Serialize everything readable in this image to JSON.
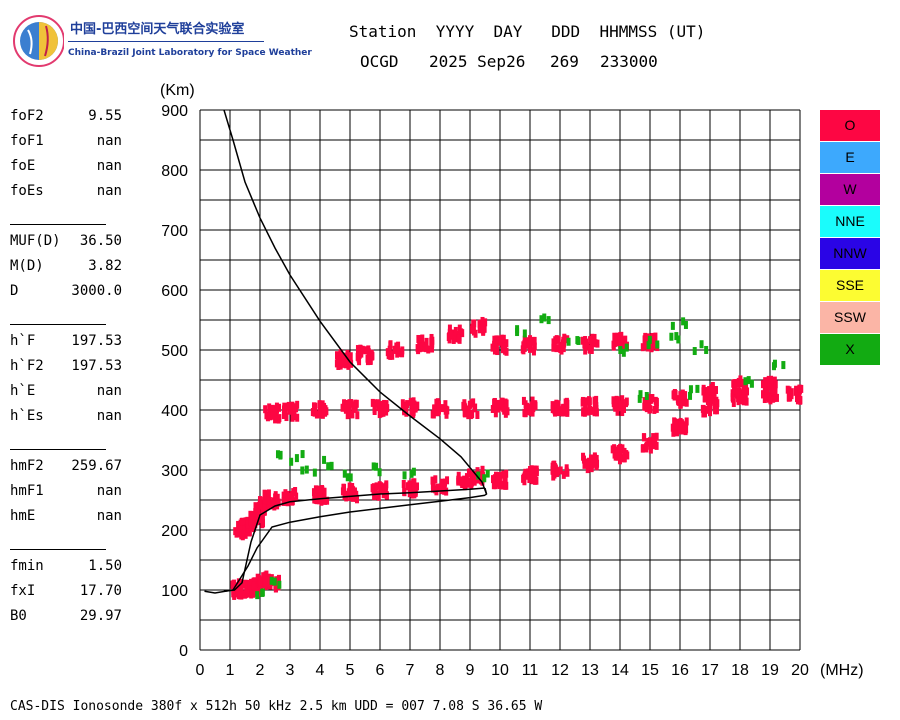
{
  "logo": {
    "cn": "中国-巴西空间天气联合实验室",
    "en": "China-Brazil Joint Laboratory for Space Weather"
  },
  "header": {
    "line1": "Station  YYYY  DAY   DDD  HHMMSS (UT)",
    "station": "OCGD",
    "date": "2025 Sep26",
    "day": "269",
    "time": "233000"
  },
  "params": [
    {
      "name": "foF2",
      "value": "9.55"
    },
    {
      "name": "foF1",
      "value": "nan"
    },
    {
      "name": "foE",
      "value": "nan"
    },
    {
      "name": "foEs",
      "value": "nan"
    },
    {
      "name": "MUF(D)",
      "value": "36.50"
    },
    {
      "name": "M(D)",
      "value": "3.82"
    },
    {
      "name": "D",
      "value": "3000.0"
    },
    {
      "name": "h`F",
      "value": "197.53"
    },
    {
      "name": "h`F2",
      "value": "197.53"
    },
    {
      "name": "h`E",
      "value": "nan"
    },
    {
      "name": "h`Es",
      "value": "nan"
    },
    {
      "name": "hmF2",
      "value": "259.67"
    },
    {
      "name": "hmF1",
      "value": "nan"
    },
    {
      "name": "hmE",
      "value": "nan"
    },
    {
      "name": "fmin",
      "value": "1.50"
    },
    {
      "name": "fxI",
      "value": "17.70"
    },
    {
      "name": "B0",
      "value": "29.97"
    }
  ],
  "legend": [
    {
      "label": "O",
      "color": "#fd0643"
    },
    {
      "label": "E",
      "color": "#3da9fd"
    },
    {
      "label": "W",
      "color": "#b3009e"
    },
    {
      "label": "NNE",
      "color": "#1afcfc"
    },
    {
      "label": "NNW",
      "color": "#2a04e6"
    },
    {
      "label": "SSE",
      "color": "#fcfc32"
    },
    {
      "label": "SSW",
      "color": "#fbb5a6"
    },
    {
      "label": "X",
      "color": "#12ab12"
    }
  ],
  "footer": "CAS-DIS Ionosonde 380f x 512h 50 kHz 2.5 km UDD = 007 7.08 S 36.65 W",
  "chart_data": {
    "type": "scatter",
    "title": "",
    "xlabel": "(MHz)",
    "ylabel": "(Km)",
    "xlim": [
      0,
      20
    ],
    "ylim": [
      0,
      900
    ],
    "xticks": [
      0,
      1,
      2,
      3,
      4,
      5,
      6,
      7,
      8,
      9,
      10,
      11,
      12,
      13,
      14,
      15,
      16,
      17,
      18,
      19,
      20
    ],
    "yticks": [
      0,
      100,
      200,
      300,
      400,
      500,
      600,
      700,
      800,
      900
    ],
    "grid": true,
    "legend_position": "right",
    "traces": [
      {
        "label": "O",
        "color": "#fd0643",
        "points": [
          [
            1.3,
            100
          ],
          [
            1.5,
            102
          ],
          [
            1.8,
            103
          ],
          [
            2.0,
            110
          ],
          [
            2.2,
            116
          ],
          [
            2.4,
            112
          ],
          [
            1.4,
            200
          ],
          [
            1.6,
            205
          ],
          [
            1.9,
            220
          ],
          [
            2.1,
            240
          ],
          [
            2.4,
            250
          ],
          [
            3.0,
            255
          ],
          [
            4.0,
            258
          ],
          [
            5.0,
            262
          ],
          [
            6.0,
            266
          ],
          [
            7.0,
            270
          ],
          [
            8.0,
            275
          ],
          [
            8.8,
            282
          ],
          [
            9.2,
            290
          ],
          [
            10.0,
            284
          ],
          [
            11.0,
            292
          ],
          [
            12.0,
            300
          ],
          [
            13.0,
            312
          ],
          [
            14.0,
            326
          ],
          [
            15.0,
            345
          ],
          [
            16.0,
            372
          ],
          [
            17.0,
            405
          ],
          [
            18.0,
            420
          ],
          [
            19.0,
            425
          ],
          [
            19.8,
            425
          ],
          [
            2.4,
            395
          ],
          [
            3.0,
            398
          ],
          [
            4.0,
            400
          ],
          [
            5.0,
            402
          ],
          [
            6.0,
            404
          ],
          [
            7.0,
            404
          ],
          [
            8.0,
            403
          ],
          [
            9.0,
            402
          ],
          [
            10.0,
            404
          ],
          [
            11.0,
            405
          ],
          [
            12.0,
            406
          ],
          [
            13.0,
            406
          ],
          [
            14.0,
            407
          ],
          [
            15.0,
            410
          ],
          [
            16.0,
            418
          ],
          [
            17.0,
            430
          ],
          [
            18.0,
            440
          ],
          [
            19.0,
            440
          ],
          [
            4.8,
            484
          ],
          [
            5.5,
            492
          ],
          [
            6.5,
            500
          ],
          [
            7.5,
            510
          ],
          [
            8.5,
            525
          ],
          [
            9.3,
            538
          ],
          [
            10.0,
            508
          ],
          [
            11.0,
            508
          ],
          [
            12.0,
            510
          ],
          [
            13.0,
            510
          ],
          [
            14.0,
            513
          ],
          [
            15.0,
            512
          ]
        ]
      },
      {
        "label": "X",
        "color": "#12ab12",
        "points": [
          [
            2.1,
            95
          ],
          [
            2.6,
            110
          ],
          [
            2.6,
            330
          ],
          [
            3.2,
            320
          ],
          [
            3.6,
            300
          ],
          [
            4.3,
            310
          ],
          [
            5.0,
            290
          ],
          [
            6.0,
            300
          ],
          [
            7.0,
            295
          ],
          [
            9.5,
            292
          ],
          [
            10.6,
            530
          ],
          [
            11.5,
            555
          ],
          [
            12.4,
            510
          ],
          [
            14.1,
            502
          ],
          [
            15.2,
            510
          ],
          [
            15.9,
            518
          ],
          [
            16.7,
            505
          ],
          [
            16.0,
            545
          ],
          [
            18.4,
            450
          ],
          [
            19.3,
            480
          ],
          [
            14.8,
            420
          ],
          [
            16.5,
            430
          ]
        ]
      }
    ],
    "curves": [
      {
        "label": "profile",
        "points": [
          [
            0.15,
            98
          ],
          [
            0.5,
            95
          ],
          [
            1.1,
            100
          ],
          [
            1.35,
            120
          ],
          [
            1.6,
            140
          ],
          [
            1.9,
            170
          ],
          [
            2.4,
            205
          ],
          [
            3.0,
            213
          ],
          [
            4.0,
            222
          ],
          [
            5.0,
            230
          ],
          [
            6.0,
            236
          ],
          [
            7.0,
            242
          ],
          [
            8.0,
            248
          ],
          [
            9.0,
            254
          ],
          [
            9.5,
            258
          ]
        ]
      },
      {
        "label": "virtual",
        "points": [
          [
            0.8,
            98
          ],
          [
            1.15,
            100
          ],
          [
            1.4,
            112
          ],
          [
            1.7,
            180
          ],
          [
            2.0,
            225
          ],
          [
            2.5,
            240
          ],
          [
            3.0,
            247
          ],
          [
            4.0,
            252
          ],
          [
            5.0,
            256
          ],
          [
            6.0,
            260
          ],
          [
            7.0,
            262
          ],
          [
            8.0,
            265
          ],
          [
            9.0,
            268
          ],
          [
            9.5,
            270
          ]
        ]
      },
      {
        "label": "upper",
        "points": [
          [
            0.8,
            900
          ],
          [
            1.1,
            850
          ],
          [
            1.5,
            780
          ],
          [
            2.0,
            720
          ],
          [
            2.5,
            670
          ],
          [
            3.0,
            625
          ],
          [
            4.0,
            548
          ],
          [
            5.0,
            480
          ],
          [
            6.0,
            430
          ],
          [
            7.0,
            390
          ],
          [
            8.0,
            352
          ],
          [
            8.7,
            322
          ],
          [
            9.4,
            280
          ],
          [
            9.55,
            260
          ]
        ]
      }
    ]
  }
}
